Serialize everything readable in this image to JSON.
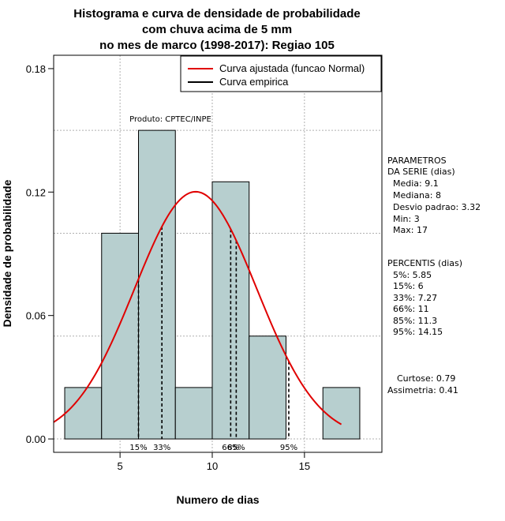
{
  "chart_data": {
    "type": "bar",
    "title": [
      "Histograma e curva de densidade de probabilidade",
      "com chuva acima de 5 mm",
      "no mes de marco (1998-2017): Regiao 105"
    ],
    "xlabel": "Numero de dias",
    "ylabel": "Densidade de probabilidade",
    "xlim": [
      1.4,
      19.2
    ],
    "ylim": [
      -0.0065,
      0.1865
    ],
    "xticks": [
      5,
      10,
      15
    ],
    "yticks": [
      0.0,
      0.06,
      0.12,
      0.18
    ],
    "ytick_labels": [
      "0.00",
      "0.06",
      "0.12",
      "0.18"
    ],
    "bin_width": 2,
    "bins": [
      {
        "x0": 2,
        "x1": 4,
        "density": 0.025
      },
      {
        "x0": 4,
        "x1": 6,
        "density": 0.1
      },
      {
        "x0": 6,
        "x1": 8,
        "density": 0.15
      },
      {
        "x0": 8,
        "x1": 10,
        "density": 0.025
      },
      {
        "x0": 10,
        "x1": 12,
        "density": 0.125
      },
      {
        "x0": 12,
        "x1": 14,
        "density": 0.05
      },
      {
        "x0": 14,
        "x1": 16,
        "density": 0.0
      },
      {
        "x0": 16,
        "x1": 18,
        "density": 0.025
      }
    ],
    "fit": {
      "name": "Curva ajustada (funcao Normal)",
      "mean": 9.1,
      "sd": 3.32,
      "x_from": 1.4,
      "x_to": 17,
      "color": "#e00000"
    },
    "empirical_name": "Curva empirica",
    "percentile_lines": [
      {
        "x": 6,
        "label": "15%"
      },
      {
        "x": 7.27,
        "label": "33%"
      },
      {
        "x": 11,
        "label": "66%"
      },
      {
        "x": 11.3,
        "label": "85%"
      },
      {
        "x": 14.15,
        "label": "95%"
      }
    ],
    "grid": true,
    "bar_color": "#b7cfcf",
    "annotation": "Produto: CPTEC/INPE",
    "legend_position": "top-right"
  },
  "side_panel": {
    "params_title": [
      "PARAMETROS",
      "DA SERIE (dias)"
    ],
    "params": [
      "Media: 9.1",
      "Mediana: 8",
      "Desvio padrao: 3.32",
      "Min: 3",
      "Max: 17"
    ],
    "percentis_title": "PERCENTIS (dias)",
    "percentis": [
      "5%: 5.85",
      "15%: 6",
      "33%: 7.27",
      "66%: 11",
      "85%: 11.3",
      "95%: 14.15"
    ],
    "curtose": "Curtose: 0.79",
    "assimetria": "Assimetria: 0.41"
  }
}
